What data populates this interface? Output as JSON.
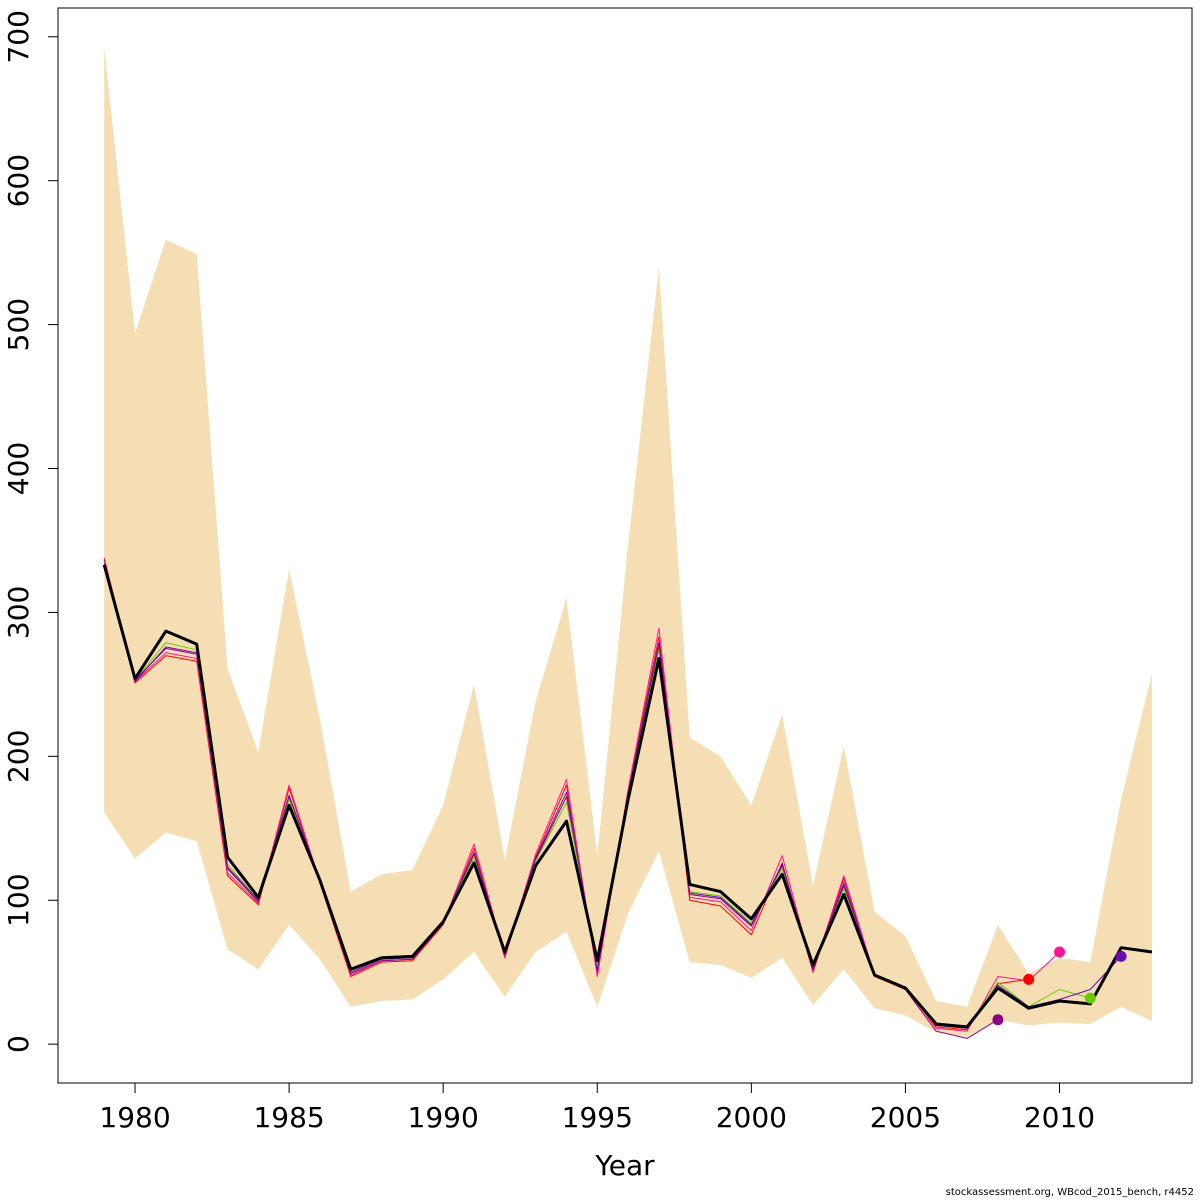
{
  "chart_data": {
    "type": "line",
    "title": "",
    "xlabel": "Year",
    "ylabel": "",
    "xlim": [
      1977.5,
      2014.3
    ],
    "ylim": [
      -27,
      720
    ],
    "xticks": [
      1980,
      1985,
      1990,
      1995,
      2000,
      2005,
      2010
    ],
    "yticks": [
      0,
      100,
      200,
      300,
      400,
      500,
      600,
      700
    ],
    "grid": false,
    "colors": {
      "band": "#f5deb3",
      "main": "#000000",
      "retros": [
        "#ff0000",
        "#ff1493",
        "#8b008b",
        "#66cc00",
        "#6a0dad",
        "#ff3366"
      ]
    },
    "band": {
      "x": [
        1979,
        1980,
        1981,
        1982,
        1983,
        1984,
        1985,
        1986,
        1987,
        1988,
        1989,
        1990,
        1991,
        1992,
        1993,
        1994,
        1995,
        1996,
        1997,
        1998,
        1999,
        2000,
        2001,
        2002,
        2003,
        2004,
        2005,
        2006,
        2007,
        2008,
        2009,
        2010,
        2011,
        2012,
        2013
      ],
      "upper": [
        693,
        494,
        559,
        549,
        261,
        203,
        330,
        226,
        106,
        118,
        121,
        166,
        250,
        128,
        238,
        310,
        131,
        347,
        540,
        213,
        200,
        166,
        229,
        110,
        207,
        92,
        75,
        30,
        26,
        83,
        49,
        60,
        57,
        170,
        257
      ],
      "lower": [
        161,
        129,
        147,
        141,
        66,
        52,
        83,
        59,
        26,
        30,
        31,
        45,
        64,
        33,
        64,
        78,
        26,
        91,
        134,
        57,
        55,
        46,
        60,
        27,
        52,
        25,
        20,
        8,
        5,
        17,
        13,
        15,
        14,
        26,
        16
      ]
    },
    "series": [
      {
        "color": "#000000",
        "x": [
          1979,
          1980,
          1981,
          1982,
          1983,
          1984,
          1985,
          1986,
          1987,
          1988,
          1989,
          1990,
          1991,
          1992,
          1993,
          1994,
          1995,
          1996,
          1997,
          1998,
          1999,
          2000,
          2001,
          2002,
          2003,
          2004,
          2005,
          2006,
          2007,
          2008,
          2009,
          2010,
          2011,
          2012,
          2013
        ],
        "values": [
          333,
          254,
          287,
          278,
          130,
          102,
          166,
          114,
          52,
          60,
          61,
          85,
          126,
          64,
          124,
          155,
          58,
          170,
          268,
          111,
          106,
          87,
          118,
          55,
          104,
          48,
          39,
          14,
          12,
          39,
          25,
          30,
          28,
          67,
          64
        ]
      },
      {
        "color": "#ff0000",
        "x": [
          1979,
          1980,
          1981,
          1982,
          1983,
          1984,
          1985,
          1986,
          1987,
          1988,
          1989,
          1990,
          1991,
          1992,
          1993,
          1994,
          1995,
          1996,
          1997,
          1998,
          1999,
          2000,
          2001,
          2002,
          2003,
          2004,
          2005,
          2006,
          2007,
          2008,
          2009
        ],
        "values": [
          337,
          251,
          270,
          266,
          117,
          97,
          178,
          112,
          47,
          57,
          58,
          83,
          136,
          60,
          130,
          180,
          48,
          176,
          283,
          100,
          96,
          76,
          126,
          50,
          115,
          47,
          38,
          12,
          10,
          42,
          45
        ]
      },
      {
        "color": "#ff1493",
        "x": [
          1979,
          1980,
          1981,
          1982,
          1983,
          1984,
          1985,
          1986,
          1987,
          1988,
          1989,
          1990,
          1991,
          1992,
          1993,
          1994,
          1995,
          1996,
          1997,
          1998,
          1999,
          2000,
          2001,
          2002,
          2003,
          2004,
          2005,
          2006,
          2007,
          2008,
          2009,
          2010
        ],
        "values": [
          338,
          252,
          272,
          268,
          119,
          98,
          180,
          113,
          48,
          58,
          59,
          84,
          139,
          61,
          132,
          184,
          47,
          177,
          289,
          102,
          99,
          79,
          131,
          51,
          117,
          48,
          39,
          11,
          9,
          47,
          44,
          64
        ]
      },
      {
        "color": "#8b008b",
        "x": [
          1979,
          1980,
          1981,
          1982,
          1983,
          1984,
          1985,
          1986,
          1987,
          1988,
          1989,
          1990,
          1991,
          1992,
          1993,
          1994,
          1995,
          1996,
          1997,
          1998,
          1999,
          2000,
          2001,
          2002,
          2003,
          2004,
          2005,
          2006,
          2007,
          2008
        ],
        "values": [
          336,
          252,
          276,
          272,
          122,
          99,
          172,
          113,
          49,
          58,
          59,
          84,
          132,
          62,
          128,
          172,
          52,
          174,
          276,
          104,
          101,
          82,
          124,
          52,
          110,
          48,
          38,
          9,
          4,
          17
        ]
      },
      {
        "color": "#66cc00",
        "x": [
          1979,
          1980,
          1981,
          1982,
          1983,
          1984,
          1985,
          1986,
          1987,
          1988,
          1989,
          1990,
          1991,
          1992,
          1993,
          1994,
          1995,
          1996,
          1997,
          1998,
          1999,
          2000,
          2001,
          2002,
          2003,
          2004,
          2005,
          2006,
          2007,
          2008,
          2009,
          2010,
          2011
        ],
        "values": [
          335,
          253,
          279,
          274,
          125,
          100,
          170,
          114,
          50,
          59,
          60,
          85,
          130,
          63,
          127,
          168,
          54,
          172,
          274,
          106,
          103,
          84,
          122,
          53,
          108,
          48,
          39,
          13,
          11,
          43,
          26,
          38,
          32
        ]
      },
      {
        "color": "#6a0dad",
        "x": [
          1979,
          1980,
          1981,
          1982,
          1983,
          1984,
          1985,
          1986,
          1987,
          1988,
          1989,
          1990,
          1991,
          1992,
          1993,
          1994,
          1995,
          1996,
          1997,
          1998,
          1999,
          2000,
          2001,
          2002,
          2003,
          2004,
          2005,
          2006,
          2007,
          2008,
          2009,
          2010,
          2011,
          2012
        ],
        "values": [
          334,
          253,
          275,
          271,
          123,
          100,
          173,
          114,
          50,
          59,
          60,
          85,
          133,
          62,
          129,
          175,
          51,
          174,
          279,
          105,
          102,
          83,
          125,
          52,
          112,
          48,
          39,
          13,
          11,
          41,
          26,
          31,
          38,
          61
        ]
      }
    ],
    "endpoints": [
      {
        "x": 2008,
        "y": 17,
        "color": "#8b008b"
      },
      {
        "x": 2009,
        "y": 45,
        "color": "#ff0000"
      },
      {
        "x": 2010,
        "y": 64,
        "color": "#ff1493"
      },
      {
        "x": 2011,
        "y": 32,
        "color": "#66cc00"
      },
      {
        "x": 2012,
        "y": 61,
        "color": "#6a0dad"
      }
    ]
  },
  "footer": {
    "note": "stockassessment.org, WBcod_2015_bench, r4452"
  }
}
